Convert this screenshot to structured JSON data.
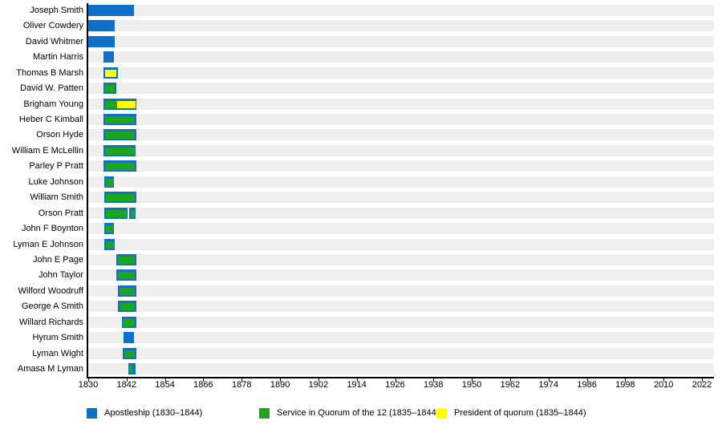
{
  "chart_data": {
    "type": "timeline",
    "description": "Gantt-style chronology chart of early Latter Day Saint apostles",
    "x_axis": {
      "min": 1830,
      "max": 2022,
      "tick_interval": 12,
      "ticks": [
        1830,
        1842,
        1854,
        1866,
        1878,
        1890,
        1902,
        1914,
        1926,
        1938,
        1950,
        1962,
        1974,
        1986,
        1998,
        2010,
        2022
      ]
    },
    "legend": [
      {
        "key": "apostleship",
        "label": "Apostleship (1830–1844)",
        "color": "#1070c8"
      },
      {
        "key": "quorum",
        "label": "Service in Quorum of the 12 (1835–1844)",
        "color": "#1ea51e"
      },
      {
        "key": "president",
        "label": "President of quorum (1835–1844)",
        "color": "#ffff00"
      }
    ],
    "rows": [
      {
        "name": "Joseph Smith",
        "apostleship": [
          [
            1830.0,
            1844.4
          ]
        ],
        "quorum": [],
        "president": []
      },
      {
        "name": "Oliver Cowdery",
        "apostleship": [
          [
            1830.0,
            1838.3
          ]
        ],
        "quorum": [],
        "president": []
      },
      {
        "name": "David Whitmer",
        "apostleship": [
          [
            1830.0,
            1838.3
          ]
        ],
        "quorum": [],
        "president": []
      },
      {
        "name": "Martin Harris",
        "apostleship": [
          [
            1834.8,
            1838.0
          ]
        ],
        "quorum": [],
        "president": []
      },
      {
        "name": "Thomas B Marsh",
        "apostleship": [
          [
            1834.8,
            1839.3
          ]
        ],
        "quorum": [],
        "president": [
          [
            1835.3,
            1838.8
          ]
        ]
      },
      {
        "name": "David W. Patten",
        "apostleship": [
          [
            1834.8,
            1838.8
          ]
        ],
        "quorum": [
          [
            1835.3,
            1838.3
          ]
        ],
        "president": []
      },
      {
        "name": "Brigham Young",
        "apostleship": [
          [
            1834.8,
            1845.0
          ]
        ],
        "quorum": [
          [
            1835.2,
            1839.0
          ]
        ],
        "president": [
          [
            1839.0,
            1844.8
          ]
        ]
      },
      {
        "name": "Heber C Kimball",
        "apostleship": [
          [
            1834.8,
            1845.0
          ]
        ],
        "quorum": [
          [
            1835.3,
            1844.6
          ]
        ],
        "president": []
      },
      {
        "name": "Orson Hyde",
        "apostleship": [
          [
            1834.8,
            1845.0
          ]
        ],
        "quorum": [
          [
            1835.3,
            1844.6
          ]
        ],
        "president": []
      },
      {
        "name": "William E McLellin",
        "apostleship": [
          [
            1834.8,
            1844.9
          ]
        ],
        "quorum": [
          [
            1835.3,
            1844.5
          ]
        ],
        "president": []
      },
      {
        "name": "Parley P Pratt",
        "apostleship": [
          [
            1834.8,
            1845.0
          ]
        ],
        "quorum": [
          [
            1835.3,
            1844.6
          ]
        ],
        "president": []
      },
      {
        "name": "Luke Johnson",
        "apostleship": [
          [
            1835.0,
            1838.0
          ]
        ],
        "quorum": [
          [
            1835.4,
            1837.7
          ]
        ],
        "president": []
      },
      {
        "name": "William Smith",
        "apostleship": [
          [
            1835.0,
            1845.0
          ]
        ],
        "quorum": [
          [
            1835.5,
            1844.6
          ]
        ],
        "president": []
      },
      {
        "name": "Orson Pratt",
        "apostleship": [
          [
            1835.0,
            1842.4
          ],
          [
            1842.9,
            1844.9
          ]
        ],
        "quorum": [
          [
            1835.4,
            1842.1
          ],
          [
            1843.2,
            1844.6
          ]
        ],
        "president": []
      },
      {
        "name": "John F Boynton",
        "apostleship": [
          [
            1835.0,
            1838.0
          ]
        ],
        "quorum": [
          [
            1835.4,
            1837.7
          ]
        ],
        "president": []
      },
      {
        "name": "Lyman E Johnson",
        "apostleship": [
          [
            1835.0,
            1838.4
          ]
        ],
        "quorum": [
          [
            1835.4,
            1838.0
          ]
        ],
        "president": []
      },
      {
        "name": "John E Page",
        "apostleship": [
          [
            1838.8,
            1845.0
          ]
        ],
        "quorum": [
          [
            1839.2,
            1844.6
          ]
        ],
        "president": []
      },
      {
        "name": "John Taylor",
        "apostleship": [
          [
            1838.8,
            1845.0
          ]
        ],
        "quorum": [
          [
            1839.2,
            1844.6
          ]
        ],
        "president": []
      },
      {
        "name": "Wilford Woodruff",
        "apostleship": [
          [
            1839.3,
            1845.0
          ]
        ],
        "quorum": [
          [
            1839.7,
            1844.6
          ]
        ],
        "president": []
      },
      {
        "name": "George A Smith",
        "apostleship": [
          [
            1839.3,
            1845.0
          ]
        ],
        "quorum": [
          [
            1839.7,
            1844.6
          ]
        ],
        "president": []
      },
      {
        "name": "Willard Richards",
        "apostleship": [
          [
            1840.5,
            1845.0
          ]
        ],
        "quorum": [
          [
            1840.9,
            1844.6
          ]
        ],
        "president": []
      },
      {
        "name": "Hyrum Smith",
        "apostleship": [
          [
            1841.0,
            1844.4
          ]
        ],
        "quorum": [],
        "president": []
      },
      {
        "name": "Lyman Wight",
        "apostleship": [
          [
            1840.8,
            1845.0
          ]
        ],
        "quorum": [
          [
            1841.2,
            1844.6
          ]
        ],
        "president": []
      },
      {
        "name": "Amasa M Lyman",
        "apostleship": [
          [
            1842.5,
            1844.8
          ]
        ],
        "quorum": [
          [
            1842.8,
            1843.7
          ]
        ],
        "president": []
      }
    ]
  },
  "colors": {
    "row_stripe": "#efefef",
    "axis": "#000000",
    "background": "#ffffff",
    "bar_apostleship": "#1070c8",
    "bar_quorum": "#1ea51e",
    "bar_president": "#ffff00"
  }
}
